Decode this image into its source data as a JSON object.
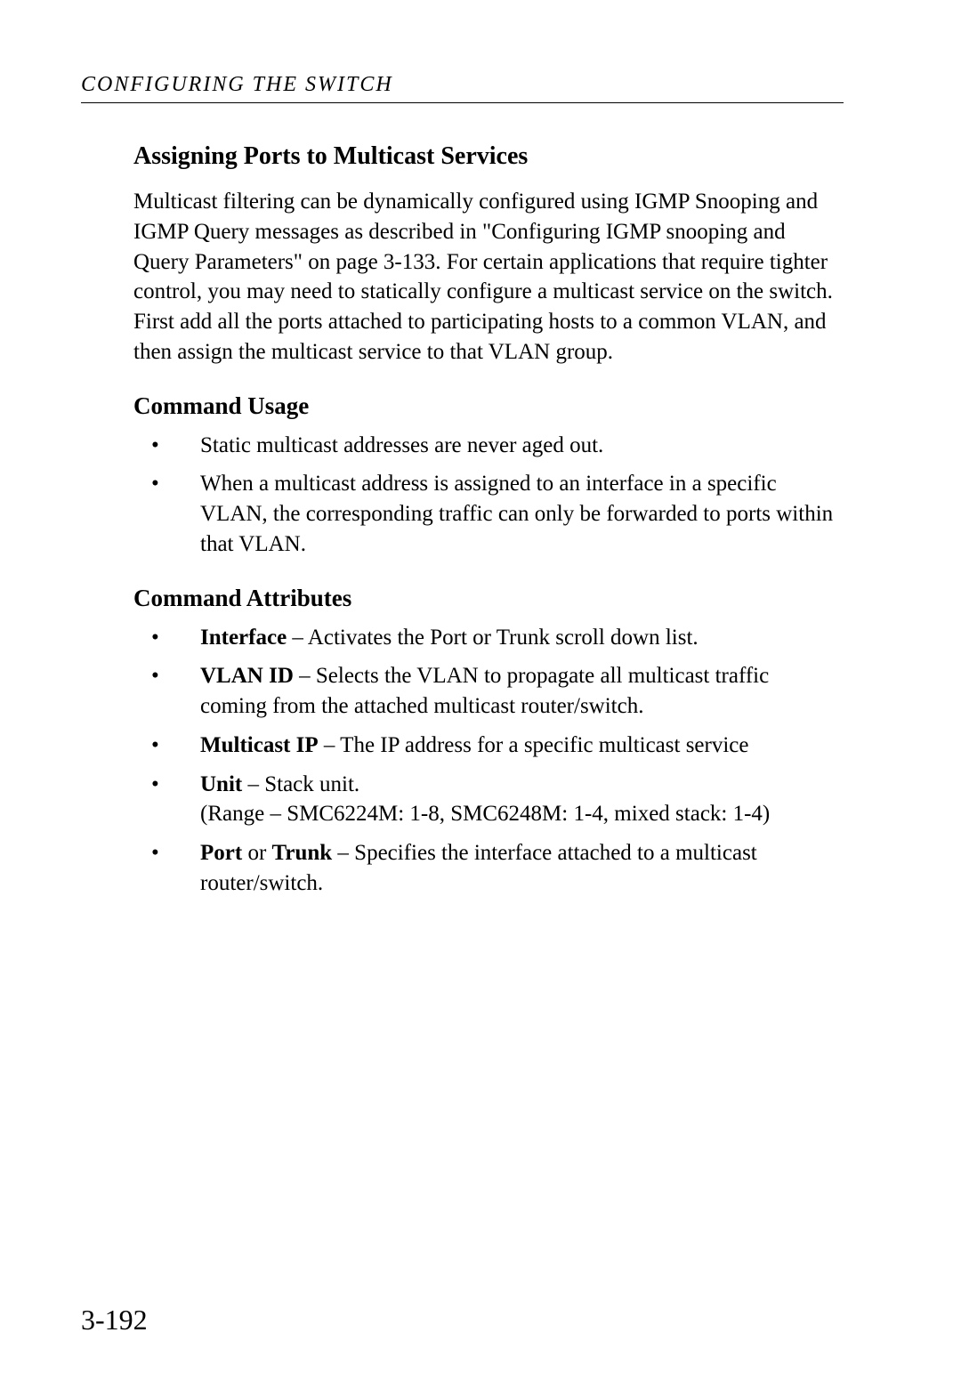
{
  "header": {
    "text": "CONFIGURING THE SWITCH"
  },
  "section_title": "Assigning Ports to Multicast Services",
  "intro_paragraph": "Multicast filtering can be dynamically configured using IGMP Snooping and IGMP Query messages as described in \"Configuring IGMP snooping and Query Parameters\" on page 3-133. For certain applications that require tighter control, you may need to statically configure a multicast service on the switch. First add all the ports attached to participating hosts to a common VLAN, and then assign the multicast service to that VLAN group.",
  "usage": {
    "title": "Command Usage",
    "items": [
      {
        "text": "Static multicast addresses are never aged out."
      },
      {
        "text": "When a multicast address is assigned to an interface in a specific VLAN, the corresponding traffic can only be forwarded to ports within that VLAN."
      }
    ]
  },
  "attributes": {
    "title": "Command Attributes",
    "items": [
      {
        "term": "Interface",
        "desc": " – Activates the Port or Trunk scroll down list."
      },
      {
        "term": "VLAN ID",
        "desc": " – Selects the VLAN to propagate all multicast traffic coming from the attached multicast router/switch."
      },
      {
        "term": "Multicast IP",
        "desc": " – The IP address for a specific multicast service"
      },
      {
        "term": "Unit",
        "desc": " – Stack unit.",
        "extra": "(Range – SMC6224M: 1-8, SMC6248M: 1-4, mixed stack: 1-4)"
      },
      {
        "term_a": "Port",
        "mid": " or ",
        "term_b": "Trunk",
        "desc": " – Specifies the interface attached to a multicast router/switch."
      }
    ]
  },
  "page_number": "3-192"
}
